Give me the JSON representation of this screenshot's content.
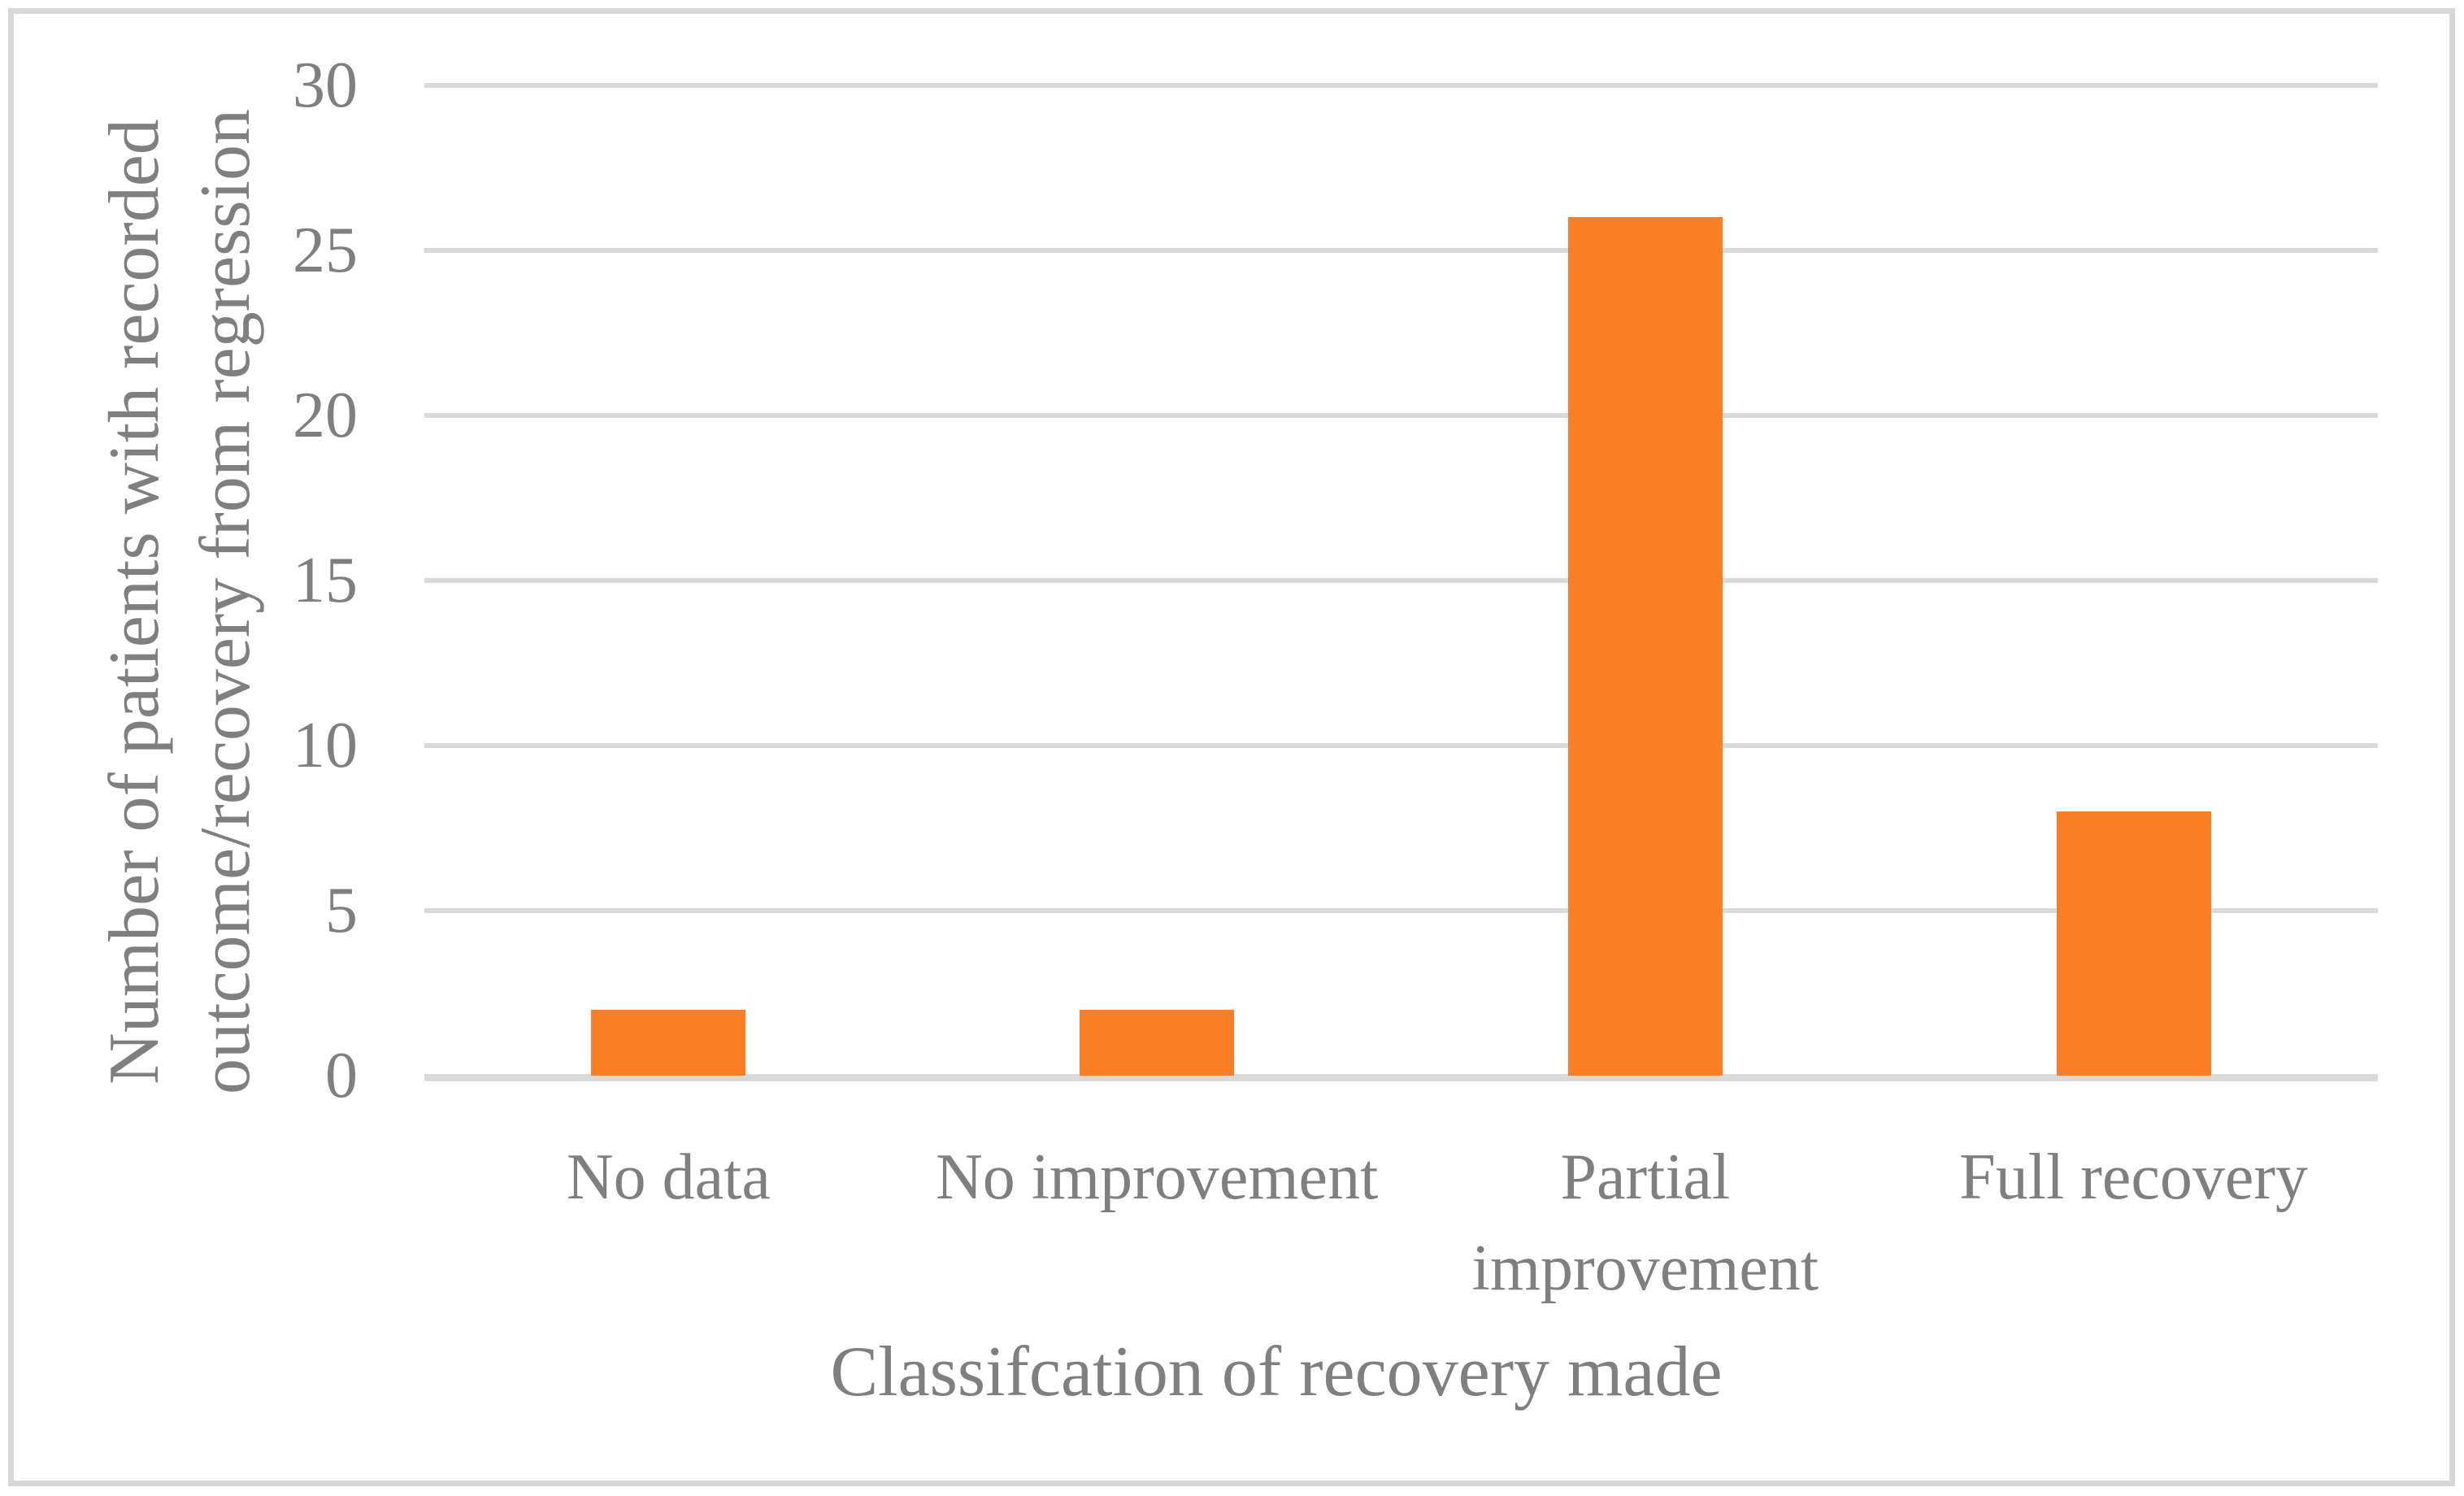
{
  "chart_data": {
    "type": "bar",
    "title": "",
    "categories": [
      "No data",
      "No improvement",
      "Partial improvement",
      "Full recovery"
    ],
    "values": [
      2,
      2,
      26,
      8
    ],
    "xlabel": "Classifcation of recovery made",
    "ylabel": "Number of patients with recorded outcome/recovery from regression",
    "ylabel_lines": [
      "Number of patients with recorded",
      "outcome/recovery from regression"
    ],
    "ylim": [
      0,
      30
    ],
    "yticks": [
      0,
      5,
      10,
      15,
      20,
      25,
      30
    ],
    "grid": "horizontal",
    "legend_position": "none",
    "bar_color": "#FB7D26",
    "gridline_color": "#D9D9D9",
    "axis_line_color": "#D9D9D9",
    "text_color": "#7F7F7F",
    "frame_color": "#D7D7D7",
    "background_color": "#FFFFFF"
  }
}
